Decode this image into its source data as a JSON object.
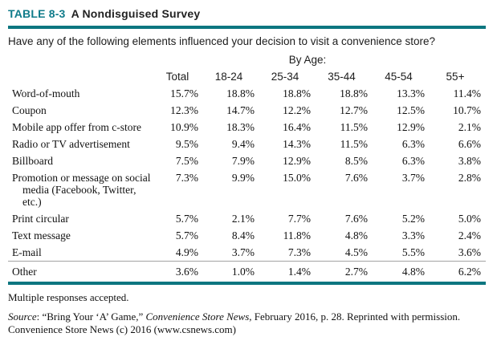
{
  "header": {
    "table_label": "TABLE 8-3",
    "table_title": "A Nondisguised Survey"
  },
  "question": "Have any of the following elements influenced your decision to visit a convenience store?",
  "table": {
    "group_header": "By Age:",
    "columns": [
      "Total",
      "18-24",
      "25-34",
      "35-44",
      "45-54",
      "55+"
    ],
    "rows": [
      {
        "label": "Word-of-mouth",
        "values": [
          "15.7%",
          "18.8%",
          "18.8%",
          "18.8%",
          "13.3%",
          "11.4%"
        ]
      },
      {
        "label": "Coupon",
        "values": [
          "12.3%",
          "14.7%",
          "12.2%",
          "12.7%",
          "12.5%",
          "10.7%"
        ]
      },
      {
        "label": "Mobile app offer from c-store",
        "values": [
          "10.9%",
          "18.3%",
          "16.4%",
          "11.5%",
          "12.9%",
          "2.1%"
        ]
      },
      {
        "label": "Radio or TV advertisement",
        "values": [
          "9.5%",
          "9.4%",
          "14.3%",
          "11.5%",
          "6.3%",
          "6.6%"
        ]
      },
      {
        "label": "Billboard",
        "values": [
          "7.5%",
          "7.9%",
          "12.9%",
          "8.5%",
          "6.3%",
          "3.8%"
        ]
      },
      {
        "label": "Promotion or message on social media (Facebook, Twitter, etc.)",
        "values": [
          "7.3%",
          "9.9%",
          "15.0%",
          "7.6%",
          "3.7%",
          "2.8%"
        ],
        "multiline": true
      },
      {
        "label": "Print circular",
        "values": [
          "5.7%",
          "2.1%",
          "7.7%",
          "7.6%",
          "5.2%",
          "5.0%"
        ]
      },
      {
        "label": "Text message",
        "values": [
          "5.7%",
          "8.4%",
          "11.8%",
          "4.8%",
          "3.3%",
          "2.4%"
        ]
      },
      {
        "label": "E-mail",
        "values": [
          "4.9%",
          "3.7%",
          "7.3%",
          "4.5%",
          "5.5%",
          "3.6%"
        ]
      },
      {
        "label": "Other",
        "values": [
          "3.6%",
          "1.0%",
          "1.4%",
          "2.7%",
          "4.8%",
          "6.2%"
        ],
        "separator_above": true
      }
    ]
  },
  "footer": {
    "note": "Multiple responses accepted.",
    "source_segments": [
      {
        "text": "Source",
        "italic": true
      },
      {
        "text": ": “Bring Your ‘A’ Game,” ",
        "italic": false
      },
      {
        "text": "Convenience Store News,",
        "italic": true
      },
      {
        "text": " February 2016, p. 28. Reprinted with permission. Convenience Store News (c) 2016 (www.csnews.com)",
        "italic": false
      }
    ]
  },
  "colors": {
    "accent_teal": "#0d7680",
    "title_teal": "#0f7b8a"
  }
}
